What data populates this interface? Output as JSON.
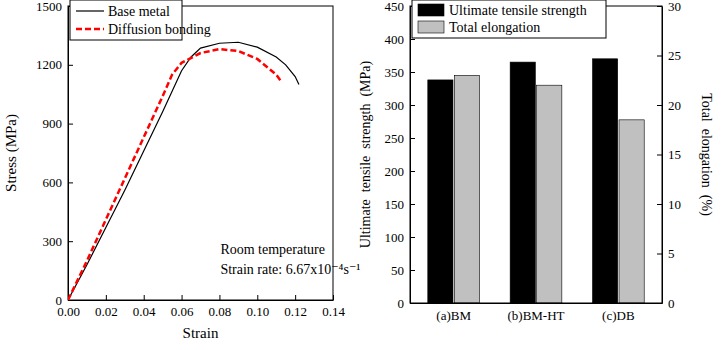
{
  "chart_data": [
    {
      "type": "line",
      "x_label": "Strain",
      "y_label": "Stress (MPa)",
      "xlim": [
        0,
        0.14
      ],
      "xticks": [
        {
          "value": 0,
          "label": "0.00"
        },
        {
          "value": 0.02,
          "label": "0.02"
        },
        {
          "value": 0.04,
          "label": "0.04"
        },
        {
          "value": 0.06,
          "label": "0.06"
        },
        {
          "value": 0.08,
          "label": "0.08"
        },
        {
          "value": 0.1,
          "label": "0.10"
        },
        {
          "value": 0.12,
          "label": "0.12"
        },
        {
          "value": 0.14,
          "label": "0.14"
        }
      ],
      "ylim": [
        0,
        1500
      ],
      "yticks": [
        0,
        300,
        600,
        900,
        1200,
        1500
      ],
      "legend": "upper left",
      "annotations": [
        "Room temperature",
        "Strain rate: 6.67x10⁻⁴s⁻¹"
      ],
      "series": [
        {
          "name": "Base metal",
          "color": "#000000",
          "line_style": "solid",
          "x": [
            0,
            0.01,
            0.02,
            0.03,
            0.04,
            0.05,
            0.06,
            0.065,
            0.07,
            0.08,
            0.09,
            0.1,
            0.11,
            0.115,
            0.12,
            0.122
          ],
          "values": [
            0,
            180,
            370,
            560,
            760,
            960,
            1170,
            1240,
            1285,
            1310,
            1315,
            1290,
            1240,
            1200,
            1140,
            1100
          ]
        },
        {
          "name": "Diffusion bonding",
          "color": "#ff0000",
          "line_style": "dashed",
          "x": [
            0,
            0.01,
            0.02,
            0.03,
            0.04,
            0.05,
            0.055,
            0.06,
            0.07,
            0.08,
            0.09,
            0.1,
            0.11,
            0.113
          ],
          "values": [
            0,
            200,
            410,
            620,
            830,
            1040,
            1150,
            1210,
            1260,
            1280,
            1270,
            1230,
            1150,
            1110
          ]
        }
      ]
    },
    {
      "type": "bar",
      "categories": [
        "(a)BM",
        "(b)BM-HT",
        "(c)DB"
      ],
      "y_label": "Ultimate  tensile  strength  (MPa)",
      "y2_label": "Total  elongation  (%)",
      "ylim": [
        0,
        450
      ],
      "yticks": [
        0,
        50,
        100,
        150,
        200,
        250,
        300,
        350,
        400,
        450
      ],
      "y2lim": [
        0,
        30
      ],
      "y2ticks": [
        0,
        5,
        10,
        15,
        20,
        25,
        30
      ],
      "legend": "upper left",
      "series": [
        {
          "name": "Ultimate tensile strength",
          "color": "#000000",
          "values": [
            338,
            365,
            370
          ]
        },
        {
          "name": "Total elongation",
          "color": "#c0c0c0",
          "axis": "y2",
          "values": [
            23,
            22,
            18.5
          ]
        }
      ]
    }
  ]
}
